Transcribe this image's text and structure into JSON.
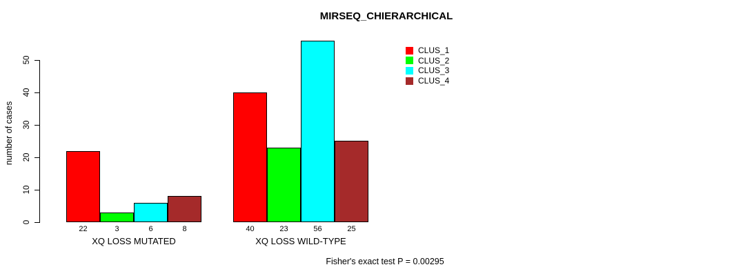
{
  "chart_data": {
    "type": "bar",
    "title": "MIRSEQ_CHIERARCHICAL",
    "ylabel": "number of cases",
    "xlabel": "",
    "ylim": [
      0,
      56
    ],
    "yticks": [
      0,
      10,
      20,
      30,
      40,
      50
    ],
    "grid": false,
    "legend_position": "top-right",
    "legend_box": false,
    "categories": [
      "XQ LOSS MUTATED",
      "XQ LOSS WILD-TYPE"
    ],
    "series": [
      {
        "name": "CLUS_1",
        "color": "#ff0000",
        "values": [
          22,
          40
        ]
      },
      {
        "name": "CLUS_2",
        "color": "#00ff00",
        "values": [
          3,
          23
        ]
      },
      {
        "name": "CLUS_3",
        "color": "#00ffff",
        "values": [
          6,
          56
        ]
      },
      {
        "name": "CLUS_4",
        "color": "#a52a2a",
        "values": [
          8,
          25
        ]
      }
    ],
    "bar_value_labels_shown": true,
    "annotation": "Fisher's exact test P = 0.00295"
  }
}
